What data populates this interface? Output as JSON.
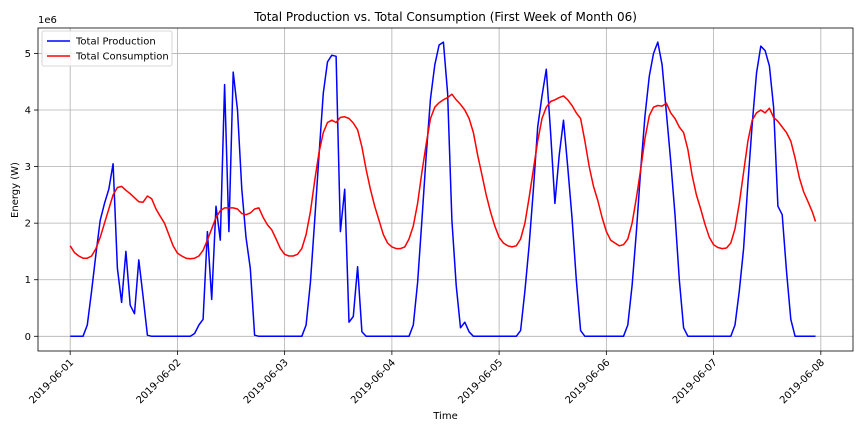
{
  "chart_data": {
    "type": "line",
    "title": "Total Production vs. Total Consumption (First Week of Month 06)",
    "xlabel": "Time",
    "ylabel": "Energy (W)",
    "y_offset_label": "1e6",
    "x_ticks": [
      "2019-06-01",
      "2019-06-02",
      "2019-06-03",
      "2019-06-04",
      "2019-06-05",
      "2019-06-06",
      "2019-06-07",
      "2019-06-08"
    ],
    "y_ticks": [
      "0",
      "1",
      "2",
      "3",
      "4",
      "5"
    ],
    "y_tick_values": [
      0,
      1,
      2,
      3,
      4,
      5
    ],
    "xlim": [
      -0.3,
      7.3
    ],
    "ylim": [
      -0.26,
      5.45
    ],
    "y_units": "millions of W",
    "grid": true,
    "legend_position": "top-left",
    "series": [
      {
        "name": "Total Production",
        "color": "#0000ff",
        "points": [
          [
            0.0,
            0
          ],
          [
            0.04,
            0
          ],
          [
            0.08,
            0
          ],
          [
            0.12,
            0
          ],
          [
            0.16,
            0.2
          ],
          [
            0.2,
            0.8
          ],
          [
            0.24,
            1.45
          ],
          [
            0.28,
            2.05
          ],
          [
            0.32,
            2.35
          ],
          [
            0.36,
            2.6
          ],
          [
            0.4,
            3.05
          ],
          [
            0.44,
            1.2
          ],
          [
            0.48,
            0.6
          ],
          [
            0.52,
            1.5
          ],
          [
            0.56,
            0.55
          ],
          [
            0.6,
            0.4
          ],
          [
            0.64,
            1.35
          ],
          [
            0.68,
            0.7
          ],
          [
            0.72,
            0.02
          ],
          [
            0.76,
            0
          ],
          [
            0.8,
            0
          ],
          [
            1.0,
            0
          ],
          [
            1.12,
            0
          ],
          [
            1.16,
            0.05
          ],
          [
            1.2,
            0.2
          ],
          [
            1.24,
            0.3
          ],
          [
            1.28,
            1.85
          ],
          [
            1.32,
            0.65
          ],
          [
            1.36,
            2.3
          ],
          [
            1.4,
            1.7
          ],
          [
            1.44,
            4.45
          ],
          [
            1.48,
            1.85
          ],
          [
            1.52,
            4.67
          ],
          [
            1.56,
            4.0
          ],
          [
            1.6,
            2.6
          ],
          [
            1.64,
            1.75
          ],
          [
            1.68,
            1.2
          ],
          [
            1.72,
            0.02
          ],
          [
            1.76,
            0
          ],
          [
            2.0,
            0
          ],
          [
            2.16,
            0
          ],
          [
            2.2,
            0.2
          ],
          [
            2.24,
            0.95
          ],
          [
            2.28,
            2.05
          ],
          [
            2.32,
            3.2
          ],
          [
            2.36,
            4.3
          ],
          [
            2.4,
            4.85
          ],
          [
            2.44,
            4.97
          ],
          [
            2.48,
            4.95
          ],
          [
            2.52,
            1.85
          ],
          [
            2.56,
            2.6
          ],
          [
            2.6,
            0.25
          ],
          [
            2.64,
            0.35
          ],
          [
            2.68,
            1.23
          ],
          [
            2.72,
            0.08
          ],
          [
            2.76,
            0
          ],
          [
            3.0,
            0
          ],
          [
            3.16,
            0
          ],
          [
            3.2,
            0.2
          ],
          [
            3.24,
            0.95
          ],
          [
            3.28,
            2.05
          ],
          [
            3.32,
            3.2
          ],
          [
            3.36,
            4.2
          ],
          [
            3.4,
            4.8
          ],
          [
            3.44,
            5.15
          ],
          [
            3.48,
            5.2
          ],
          [
            3.52,
            4.3
          ],
          [
            3.56,
            2.05
          ],
          [
            3.6,
            0.9
          ],
          [
            3.64,
            0.15
          ],
          [
            3.68,
            0.25
          ],
          [
            3.72,
            0.08
          ],
          [
            3.76,
            0
          ],
          [
            4.0,
            0
          ],
          [
            4.16,
            0
          ],
          [
            4.2,
            0.1
          ],
          [
            4.24,
            0.8
          ],
          [
            4.28,
            1.6
          ],
          [
            4.32,
            2.6
          ],
          [
            4.36,
            3.7
          ],
          [
            4.4,
            4.25
          ],
          [
            4.44,
            4.72
          ],
          [
            4.48,
            3.6
          ],
          [
            4.52,
            2.35
          ],
          [
            4.56,
            3.2
          ],
          [
            4.6,
            3.82
          ],
          [
            4.64,
            3.0
          ],
          [
            4.68,
            2.1
          ],
          [
            4.72,
            1.0
          ],
          [
            4.76,
            0.1
          ],
          [
            4.8,
            0
          ],
          [
            5.0,
            0
          ],
          [
            5.16,
            0
          ],
          [
            5.2,
            0.2
          ],
          [
            5.24,
            0.9
          ],
          [
            5.28,
            1.85
          ],
          [
            5.32,
            2.95
          ],
          [
            5.36,
            3.9
          ],
          [
            5.4,
            4.6
          ],
          [
            5.44,
            5.0
          ],
          [
            5.48,
            5.2
          ],
          [
            5.52,
            4.8
          ],
          [
            5.56,
            3.95
          ],
          [
            5.6,
            3.1
          ],
          [
            5.64,
            2.15
          ],
          [
            5.68,
            1.0
          ],
          [
            5.72,
            0.15
          ],
          [
            5.76,
            0
          ],
          [
            6.0,
            0
          ],
          [
            6.16,
            0
          ],
          [
            6.2,
            0.2
          ],
          [
            6.24,
            0.8
          ],
          [
            6.28,
            1.55
          ],
          [
            6.32,
            2.7
          ],
          [
            6.36,
            3.75
          ],
          [
            6.4,
            4.65
          ],
          [
            6.44,
            5.13
          ],
          [
            6.48,
            5.05
          ],
          [
            6.52,
            4.78
          ],
          [
            6.56,
            4.05
          ],
          [
            6.6,
            2.3
          ],
          [
            6.64,
            2.15
          ],
          [
            6.68,
            1.15
          ],
          [
            6.72,
            0.3
          ],
          [
            6.76,
            0
          ],
          [
            6.95,
            0
          ]
        ]
      },
      {
        "name": "Total Consumption",
        "color": "#ff0000",
        "points": [
          [
            0.0,
            1.6
          ],
          [
            0.04,
            1.48
          ],
          [
            0.08,
            1.42
          ],
          [
            0.12,
            1.38
          ],
          [
            0.16,
            1.38
          ],
          [
            0.2,
            1.42
          ],
          [
            0.24,
            1.55
          ],
          [
            0.28,
            1.75
          ],
          [
            0.32,
            2.0
          ],
          [
            0.36,
            2.25
          ],
          [
            0.4,
            2.5
          ],
          [
            0.44,
            2.63
          ],
          [
            0.48,
            2.65
          ],
          [
            0.52,
            2.58
          ],
          [
            0.56,
            2.52
          ],
          [
            0.6,
            2.45
          ],
          [
            0.64,
            2.38
          ],
          [
            0.68,
            2.37
          ],
          [
            0.72,
            2.48
          ],
          [
            0.76,
            2.43
          ],
          [
            0.8,
            2.25
          ],
          [
            0.84,
            2.12
          ],
          [
            0.88,
            2.0
          ],
          [
            0.92,
            1.8
          ],
          [
            0.96,
            1.6
          ],
          [
            1.0,
            1.47
          ],
          [
            1.04,
            1.42
          ],
          [
            1.08,
            1.38
          ],
          [
            1.12,
            1.37
          ],
          [
            1.16,
            1.38
          ],
          [
            1.2,
            1.42
          ],
          [
            1.24,
            1.52
          ],
          [
            1.28,
            1.7
          ],
          [
            1.32,
            1.9
          ],
          [
            1.36,
            2.1
          ],
          [
            1.4,
            2.22
          ],
          [
            1.44,
            2.27
          ],
          [
            1.48,
            2.27
          ],
          [
            1.52,
            2.27
          ],
          [
            1.56,
            2.25
          ],
          [
            1.6,
            2.17
          ],
          [
            1.64,
            2.15
          ],
          [
            1.68,
            2.18
          ],
          [
            1.72,
            2.25
          ],
          [
            1.76,
            2.27
          ],
          [
            1.8,
            2.1
          ],
          [
            1.84,
            1.97
          ],
          [
            1.88,
            1.88
          ],
          [
            1.92,
            1.72
          ],
          [
            1.96,
            1.55
          ],
          [
            2.0,
            1.45
          ],
          [
            2.04,
            1.42
          ],
          [
            2.08,
            1.42
          ],
          [
            2.12,
            1.45
          ],
          [
            2.16,
            1.55
          ],
          [
            2.2,
            1.8
          ],
          [
            2.24,
            2.2
          ],
          [
            2.28,
            2.75
          ],
          [
            2.32,
            3.25
          ],
          [
            2.36,
            3.6
          ],
          [
            2.4,
            3.78
          ],
          [
            2.44,
            3.82
          ],
          [
            2.48,
            3.78
          ],
          [
            2.52,
            3.87
          ],
          [
            2.56,
            3.88
          ],
          [
            2.6,
            3.85
          ],
          [
            2.64,
            3.77
          ],
          [
            2.68,
            3.65
          ],
          [
            2.72,
            3.35
          ],
          [
            2.76,
            2.95
          ],
          [
            2.8,
            2.6
          ],
          [
            2.84,
            2.3
          ],
          [
            2.88,
            2.05
          ],
          [
            2.92,
            1.8
          ],
          [
            2.96,
            1.65
          ],
          [
            3.0,
            1.58
          ],
          [
            3.04,
            1.55
          ],
          [
            3.08,
            1.55
          ],
          [
            3.12,
            1.58
          ],
          [
            3.16,
            1.72
          ],
          [
            3.2,
            1.95
          ],
          [
            3.24,
            2.35
          ],
          [
            3.28,
            2.9
          ],
          [
            3.32,
            3.4
          ],
          [
            3.36,
            3.85
          ],
          [
            3.4,
            4.05
          ],
          [
            3.44,
            4.13
          ],
          [
            3.48,
            4.18
          ],
          [
            3.52,
            4.22
          ],
          [
            3.56,
            4.28
          ],
          [
            3.6,
            4.18
          ],
          [
            3.64,
            4.1
          ],
          [
            3.68,
            4.0
          ],
          [
            3.72,
            3.85
          ],
          [
            3.76,
            3.6
          ],
          [
            3.8,
            3.2
          ],
          [
            3.84,
            2.85
          ],
          [
            3.88,
            2.5
          ],
          [
            3.92,
            2.2
          ],
          [
            3.96,
            1.95
          ],
          [
            4.0,
            1.75
          ],
          [
            4.04,
            1.65
          ],
          [
            4.08,
            1.6
          ],
          [
            4.12,
            1.58
          ],
          [
            4.16,
            1.6
          ],
          [
            4.2,
            1.72
          ],
          [
            4.24,
            2.0
          ],
          [
            4.28,
            2.45
          ],
          [
            4.32,
            2.95
          ],
          [
            4.36,
            3.45
          ],
          [
            4.4,
            3.85
          ],
          [
            4.44,
            4.05
          ],
          [
            4.48,
            4.15
          ],
          [
            4.52,
            4.18
          ],
          [
            4.56,
            4.22
          ],
          [
            4.6,
            4.25
          ],
          [
            4.64,
            4.18
          ],
          [
            4.68,
            4.08
          ],
          [
            4.72,
            3.95
          ],
          [
            4.76,
            3.85
          ],
          [
            4.8,
            3.45
          ],
          [
            4.84,
            3.0
          ],
          [
            4.88,
            2.65
          ],
          [
            4.92,
            2.4
          ],
          [
            4.96,
            2.1
          ],
          [
            5.0,
            1.85
          ],
          [
            5.04,
            1.7
          ],
          [
            5.08,
            1.65
          ],
          [
            5.12,
            1.6
          ],
          [
            5.16,
            1.62
          ],
          [
            5.2,
            1.72
          ],
          [
            5.24,
            2.0
          ],
          [
            5.28,
            2.45
          ],
          [
            5.32,
            2.95
          ],
          [
            5.36,
            3.5
          ],
          [
            5.4,
            3.9
          ],
          [
            5.44,
            4.05
          ],
          [
            5.48,
            4.08
          ],
          [
            5.52,
            4.07
          ],
          [
            5.56,
            4.12
          ],
          [
            5.6,
            3.95
          ],
          [
            5.64,
            3.85
          ],
          [
            5.68,
            3.7
          ],
          [
            5.72,
            3.6
          ],
          [
            5.76,
            3.3
          ],
          [
            5.8,
            2.85
          ],
          [
            5.84,
            2.5
          ],
          [
            5.88,
            2.25
          ],
          [
            5.92,
            1.98
          ],
          [
            5.96,
            1.75
          ],
          [
            6.0,
            1.62
          ],
          [
            6.04,
            1.57
          ],
          [
            6.08,
            1.55
          ],
          [
            6.12,
            1.56
          ],
          [
            6.16,
            1.65
          ],
          [
            6.2,
            1.9
          ],
          [
            6.24,
            2.35
          ],
          [
            6.28,
            2.9
          ],
          [
            6.32,
            3.45
          ],
          [
            6.36,
            3.82
          ],
          [
            6.4,
            3.95
          ],
          [
            6.44,
            4.0
          ],
          [
            6.48,
            3.95
          ],
          [
            6.52,
            4.03
          ],
          [
            6.56,
            3.87
          ],
          [
            6.6,
            3.8
          ],
          [
            6.64,
            3.7
          ],
          [
            6.68,
            3.6
          ],
          [
            6.72,
            3.45
          ],
          [
            6.76,
            3.15
          ],
          [
            6.8,
            2.8
          ],
          [
            6.84,
            2.55
          ],
          [
            6.88,
            2.38
          ],
          [
            6.92,
            2.2
          ],
          [
            6.95,
            2.03
          ]
        ]
      }
    ]
  }
}
